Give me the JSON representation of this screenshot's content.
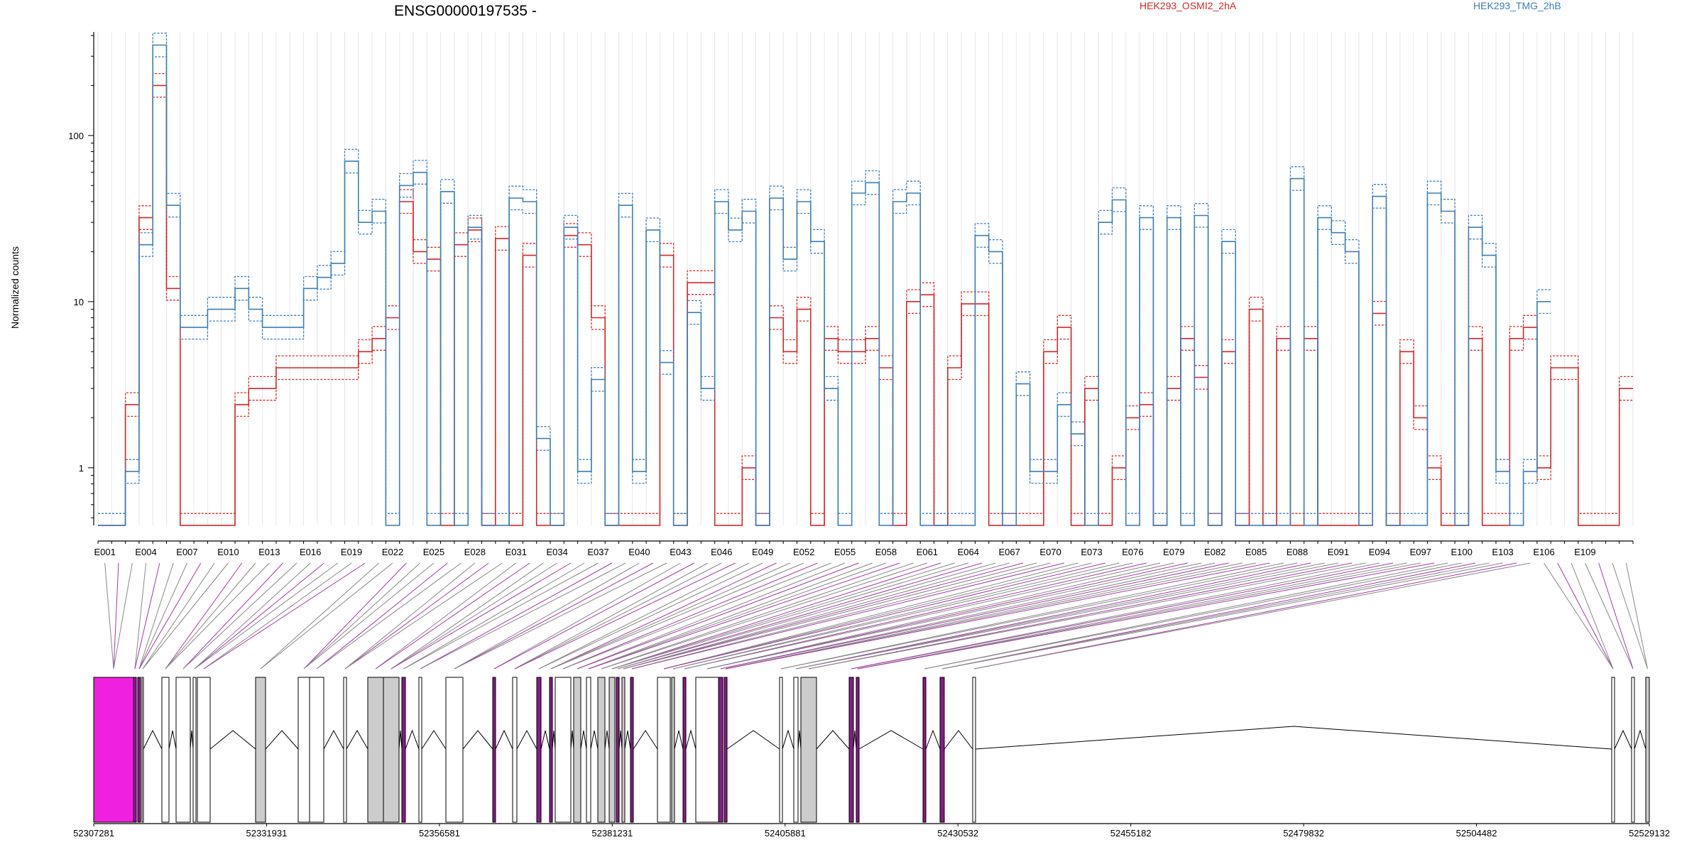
{
  "chart_data": {
    "type": "line",
    "title": "ENSG00000197535 -",
    "ylabel": "Normalized counts",
    "yscale": "log",
    "ylim": [
      0.45,
      420
    ],
    "yticks": [
      1,
      10,
      100
    ],
    "ytick_labels": [
      "1",
      "10",
      "100"
    ],
    "legend_placement": "top",
    "x_tick_labels": [
      "E001",
      "E004",
      "E007",
      "E010",
      "E013",
      "E016",
      "E019",
      "E022",
      "E025",
      "E028",
      "E031",
      "E034",
      "E037",
      "E040",
      "E043",
      "E046",
      "E049",
      "E052",
      "E055",
      "E058",
      "E061",
      "E064",
      "E067",
      "E070",
      "E073",
      "E076",
      "E079",
      "E082",
      "E085",
      "E088",
      "E091",
      "E094",
      "E097",
      "E100",
      "E103",
      "E106",
      "E109"
    ],
    "series": [
      {
        "name": "HEK293_OSMI2_2hA",
        "color": "#d62728",
        "values": [
          0.45,
          0.45,
          2.4,
          32,
          200,
          12,
          0.45,
          0.45,
          0.45,
          0.45,
          2.4,
          3,
          3,
          4,
          4,
          4,
          4,
          4,
          4,
          5,
          6,
          8,
          40,
          20,
          18,
          0.45,
          22,
          27,
          0.45,
          24,
          0.45,
          19,
          0.45,
          0.45,
          25,
          22,
          8,
          0.45,
          0.45,
          0.45,
          0.45,
          19,
          0.45,
          13,
          13,
          0.45,
          0.45,
          1,
          0.45,
          8,
          5,
          9,
          0.45,
          6,
          5,
          5,
          6,
          4,
          0.45,
          10,
          11,
          0.45,
          4,
          9.7,
          9.7,
          0.45,
          0.45,
          0.45,
          0.45,
          5,
          7,
          0.45,
          3,
          0.45,
          1,
          2,
          2.4,
          0.45,
          3,
          6,
          3.5,
          0.45,
          5,
          0.45,
          9,
          0.45,
          6,
          0.45,
          6,
          0.45,
          0.45,
          0.45,
          0.45,
          8.5,
          0.45,
          5,
          2,
          1,
          0.45,
          0.45,
          6,
          0.45,
          0.45,
          6,
          7,
          1,
          4,
          4,
          0.45,
          0.45,
          0.45,
          3
        ]
      },
      {
        "name": "HEK293_TMG_2hB",
        "color": "#3c7fb8",
        "values": [
          0.45,
          0.45,
          0.95,
          22,
          350,
          38,
          7,
          7,
          9,
          9,
          12,
          9,
          7,
          7,
          7,
          12,
          14,
          17,
          70,
          30,
          35,
          0.45,
          50,
          60,
          0.45,
          46,
          0.45,
          28,
          0.45,
          0.45,
          42,
          40,
          1.5,
          0.45,
          28,
          0.95,
          3.4,
          0.45,
          38,
          0.95,
          27,
          4.3,
          0.45,
          8.6,
          3,
          40,
          27,
          35,
          0.45,
          42,
          18,
          40,
          23,
          3,
          0.45,
          45,
          52,
          0.45,
          40,
          45,
          0.45,
          0.45,
          0.45,
          0.45,
          25,
          20,
          0.45,
          3.2,
          0.95,
          0.95,
          2.4,
          1.6,
          0.45,
          30,
          41,
          0.45,
          32,
          0.45,
          32,
          0.45,
          33,
          0.45,
          23,
          0.45,
          0.45,
          0.45,
          0.45,
          55,
          0.45,
          32,
          26,
          20,
          0.45,
          43,
          0.45,
          0.45,
          0.45,
          45,
          35,
          0.45,
          28,
          19,
          0.95,
          0.45,
          0.95,
          10
        ]
      }
    ],
    "genomic_ticks": [
      "52307281",
      "52331931",
      "52356581",
      "52381231",
      "52405881",
      "52430532",
      "52455182",
      "52479832",
      "52504482",
      "52529132"
    ]
  }
}
